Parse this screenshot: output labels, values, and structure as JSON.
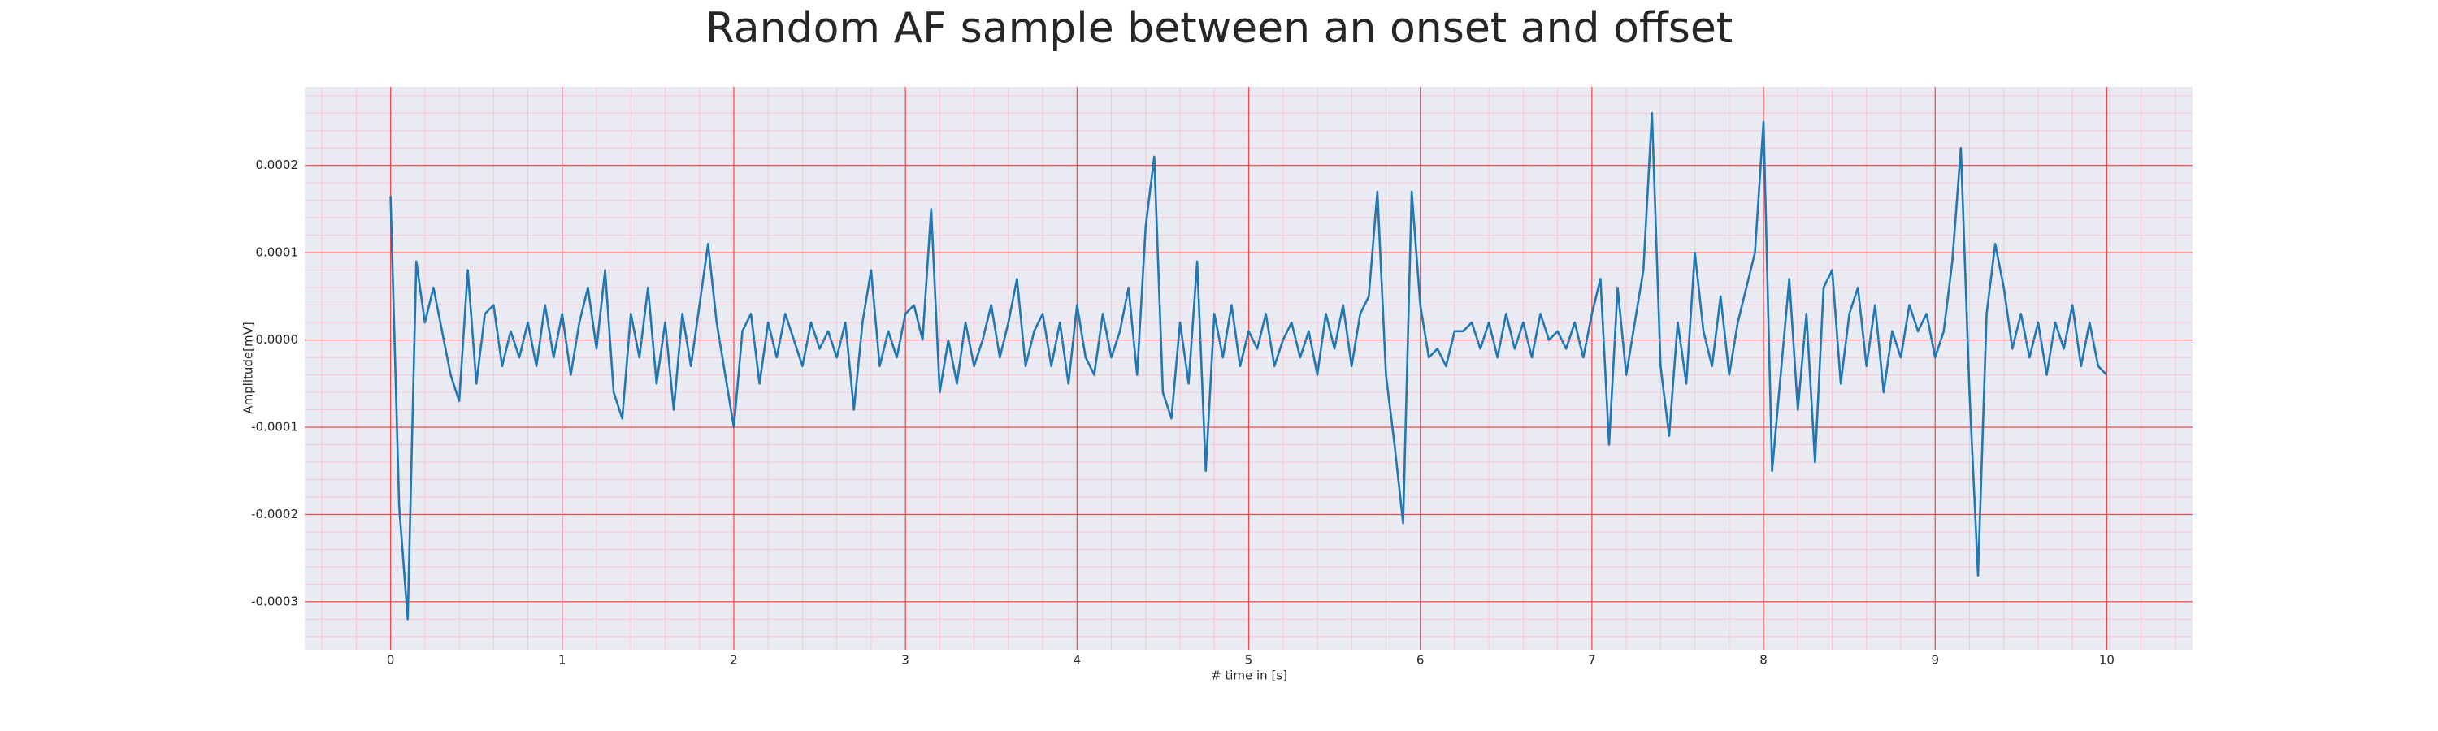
{
  "chart_data": {
    "type": "line",
    "title": "Random AF sample between an onset and offset",
    "xlabel": "# time in [s]",
    "ylabel": "Amplitude[mV]",
    "xlim": [
      -0.5,
      10.5
    ],
    "ylim": [
      -0.000355,
      0.00029
    ],
    "xticks": [
      0,
      1,
      2,
      3,
      4,
      5,
      6,
      7,
      8,
      9,
      10
    ],
    "yticks": [
      {
        "value": -0.0003,
        "label": "-0.0003"
      },
      {
        "value": -0.0002,
        "label": "-0.0002"
      },
      {
        "value": -0.0001,
        "label": "-0.0001"
      },
      {
        "value": 0,
        "label": "0.0000"
      },
      {
        "value": 0.0001,
        "label": "0.0001"
      },
      {
        "value": 0.0002,
        "label": "0.0002"
      }
    ],
    "grid": true,
    "grid_color": "#ff4444",
    "background": "#eaeaf2",
    "series": [
      {
        "color": "#1f77b4",
        "x": [
          0,
          0.05,
          0.1,
          0.15,
          0.2,
          0.25,
          0.3,
          0.35,
          0.4,
          0.45,
          0.5,
          0.55,
          0.6,
          0.65,
          0.7,
          0.75,
          0.8,
          0.85,
          0.9,
          0.95,
          1,
          1.05,
          1.1,
          1.15,
          1.2,
          1.25,
          1.3,
          1.35,
          1.4,
          1.45,
          1.5,
          1.55,
          1.6,
          1.65,
          1.7,
          1.75,
          1.8,
          1.85,
          1.9,
          1.95,
          2,
          2.05,
          2.1,
          2.15,
          2.2,
          2.25,
          2.3,
          2.35,
          2.4,
          2.45,
          2.5,
          2.55,
          2.6,
          2.65,
          2.7,
          2.75,
          2.8,
          2.85,
          2.9,
          2.95,
          3,
          3.05,
          3.1,
          3.15,
          3.2,
          3.25,
          3.3,
          3.35,
          3.4,
          3.45,
          3.5,
          3.55,
          3.6,
          3.65,
          3.7,
          3.75,
          3.8,
          3.85,
          3.9,
          3.95,
          4,
          4.05,
          4.1,
          4.15,
          4.2,
          4.25,
          4.3,
          4.35,
          4.4,
          4.45,
          4.5,
          4.55,
          4.6,
          4.65,
          4.7,
          4.75,
          4.8,
          4.85,
          4.9,
          4.95,
          5,
          5.05,
          5.1,
          5.15,
          5.2,
          5.25,
          5.3,
          5.35,
          5.4,
          5.45,
          5.5,
          5.55,
          5.6,
          5.65,
          5.7,
          5.75,
          5.8,
          5.85,
          5.9,
          5.95,
          6,
          6.05,
          6.1,
          6.15,
          6.2,
          6.25,
          6.3,
          6.35,
          6.4,
          6.45,
          6.5,
          6.55,
          6.6,
          6.65,
          6.7,
          6.75,
          6.8,
          6.85,
          6.9,
          6.95,
          7,
          7.05,
          7.1,
          7.15,
          7.2,
          7.25,
          7.3,
          7.35,
          7.4,
          7.45,
          7.5,
          7.55,
          7.6,
          7.65,
          7.7,
          7.75,
          7.8,
          7.85,
          7.9,
          7.95,
          8,
          8.05,
          8.1,
          8.15,
          8.2,
          8.25,
          8.3,
          8.35,
          8.4,
          8.45,
          8.5,
          8.55,
          8.6,
          8.65,
          8.7,
          8.75,
          8.8,
          8.85,
          8.9,
          8.95,
          9,
          9.05,
          9.1,
          9.15,
          9.2,
          9.25,
          9.3,
          9.35,
          9.4,
          9.45,
          9.5,
          9.55,
          9.6,
          9.65,
          9.7,
          9.75,
          9.8,
          9.85,
          9.9,
          9.95,
          10
        ],
        "values": [
          0.000165,
          -0.00019,
          -0.00032,
          9e-05,
          2e-05,
          6e-05,
          1e-05,
          -4e-05,
          -7e-05,
          8e-05,
          -5e-05,
          3e-05,
          4e-05,
          -3e-05,
          1e-05,
          -2e-05,
          2e-05,
          -3e-05,
          4e-05,
          -2e-05,
          3e-05,
          -4e-05,
          2e-05,
          6e-05,
          -1e-05,
          8e-05,
          -6e-05,
          -9e-05,
          3e-05,
          -2e-05,
          6e-05,
          -5e-05,
          2e-05,
          -8e-05,
          3e-05,
          -3e-05,
          4e-05,
          0.00011,
          2e-05,
          -4e-05,
          -0.0001,
          1e-05,
          3e-05,
          -5e-05,
          2e-05,
          -2e-05,
          3e-05,
          0,
          -3e-05,
          2e-05,
          -1e-05,
          1e-05,
          -2e-05,
          2e-05,
          -8e-05,
          2e-05,
          8e-05,
          -3e-05,
          1e-05,
          -2e-05,
          3e-05,
          4e-05,
          0,
          0.00015,
          -6e-05,
          0,
          -5e-05,
          2e-05,
          -3e-05,
          0,
          4e-05,
          -2e-05,
          2e-05,
          7e-05,
          -3e-05,
          1e-05,
          3e-05,
          -3e-05,
          2e-05,
          -5e-05,
          4e-05,
          -2e-05,
          -4e-05,
          3e-05,
          -2e-05,
          1e-05,
          6e-05,
          -4e-05,
          0.00013,
          0.00021,
          -6e-05,
          -9e-05,
          2e-05,
          -5e-05,
          9e-05,
          -0.00015,
          3e-05,
          -2e-05,
          4e-05,
          -3e-05,
          1e-05,
          -1e-05,
          3e-05,
          -3e-05,
          0,
          2e-05,
          -2e-05,
          1e-05,
          -4e-05,
          3e-05,
          -1e-05,
          4e-05,
          -3e-05,
          3e-05,
          5e-05,
          0.00017,
          -4e-05,
          -0.00012,
          -0.00021,
          0.00017,
          4e-05,
          -2e-05,
          -1e-05,
          -3e-05,
          1e-05,
          1e-05,
          2e-05,
          -1e-05,
          2e-05,
          -2e-05,
          3e-05,
          -1e-05,
          2e-05,
          -2e-05,
          3e-05,
          0,
          1e-05,
          -1e-05,
          2e-05,
          -2e-05,
          3e-05,
          7e-05,
          -0.00012,
          6e-05,
          -4e-05,
          2e-05,
          8e-05,
          0.00026,
          -3e-05,
          -0.00011,
          2e-05,
          -5e-05,
          0.0001,
          1e-05,
          -3e-05,
          5e-05,
          -4e-05,
          2e-05,
          6e-05,
          0.0001,
          0.00025,
          -0.00015,
          -4e-05,
          7e-05,
          -8e-05,
          3e-05,
          -0.00014,
          6e-05,
          8e-05,
          -5e-05,
          3e-05,
          6e-05,
          -3e-05,
          4e-05,
          -6e-05,
          1e-05,
          -2e-05,
          4e-05,
          1e-05,
          3e-05,
          -2e-05,
          1e-05,
          9e-05,
          0.00022,
          -6e-05,
          -0.00027,
          3e-05,
          0.00011,
          6e-05,
          -1e-05,
          3e-05,
          -2e-05,
          2e-05,
          -4e-05,
          2e-05,
          -1e-05,
          4e-05,
          -3e-05,
          2e-05,
          -3e-05,
          -4e-05
        ]
      }
    ]
  }
}
